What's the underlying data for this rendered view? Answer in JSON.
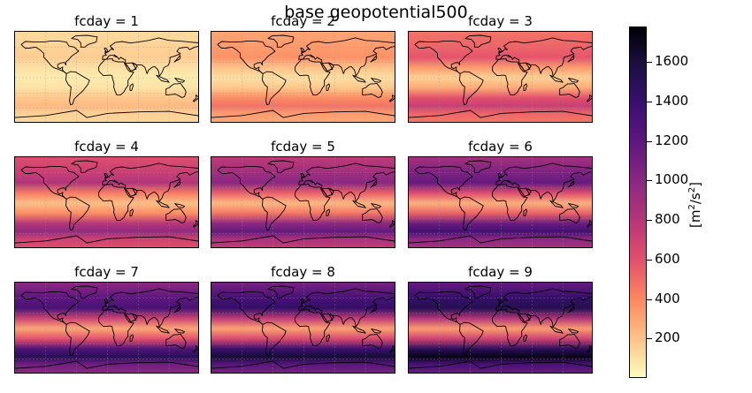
{
  "chart_data": {
    "type": "heatmap",
    "title": "base geopotential500",
    "facet_variable": "fcday",
    "panels": [
      {
        "title": "fcday = 1",
        "fcday": 1,
        "lat_band_values": [
          {
            "lat": 90,
            "value": 120
          },
          {
            "lat": 60,
            "value": 140
          },
          {
            "lat": 40,
            "value": 160
          },
          {
            "lat": 20,
            "value": 100
          },
          {
            "lat": 0,
            "value": 60
          },
          {
            "lat": -20,
            "value": 90
          },
          {
            "lat": -40,
            "value": 180
          },
          {
            "lat": -55,
            "value": 230
          },
          {
            "lat": -70,
            "value": 150
          },
          {
            "lat": -90,
            "value": 120
          }
        ]
      },
      {
        "title": "fcday = 2",
        "fcday": 2,
        "lat_band_values": [
          {
            "lat": 90,
            "value": 300
          },
          {
            "lat": 60,
            "value": 330
          },
          {
            "lat": 40,
            "value": 360
          },
          {
            "lat": 20,
            "value": 200
          },
          {
            "lat": 0,
            "value": 100
          },
          {
            "lat": -20,
            "value": 180
          },
          {
            "lat": -40,
            "value": 380
          },
          {
            "lat": -55,
            "value": 470
          },
          {
            "lat": -70,
            "value": 330
          },
          {
            "lat": -90,
            "value": 280
          }
        ]
      },
      {
        "title": "fcday = 3",
        "fcday": 3,
        "lat_band_values": [
          {
            "lat": 90,
            "value": 470
          },
          {
            "lat": 60,
            "value": 520
          },
          {
            "lat": 40,
            "value": 580
          },
          {
            "lat": 20,
            "value": 330
          },
          {
            "lat": 0,
            "value": 150
          },
          {
            "lat": -20,
            "value": 280
          },
          {
            "lat": -40,
            "value": 600
          },
          {
            "lat": -55,
            "value": 720
          },
          {
            "lat": -70,
            "value": 520
          },
          {
            "lat": -90,
            "value": 440
          }
        ]
      },
      {
        "title": "fcday = 4",
        "fcday": 4,
        "lat_band_values": [
          {
            "lat": 90,
            "value": 620
          },
          {
            "lat": 60,
            "value": 720
          },
          {
            "lat": 40,
            "value": 820
          },
          {
            "lat": 20,
            "value": 440
          },
          {
            "lat": 0,
            "value": 200
          },
          {
            "lat": -20,
            "value": 380
          },
          {
            "lat": -40,
            "value": 800
          },
          {
            "lat": -55,
            "value": 960
          },
          {
            "lat": -70,
            "value": 700
          },
          {
            "lat": -90,
            "value": 600
          }
        ]
      },
      {
        "title": "fcday = 5",
        "fcday": 5,
        "lat_band_values": [
          {
            "lat": 90,
            "value": 760
          },
          {
            "lat": 60,
            "value": 900
          },
          {
            "lat": 40,
            "value": 1000
          },
          {
            "lat": 20,
            "value": 540
          },
          {
            "lat": 0,
            "value": 230
          },
          {
            "lat": -20,
            "value": 460
          },
          {
            "lat": -40,
            "value": 990
          },
          {
            "lat": -55,
            "value": 1160
          },
          {
            "lat": -70,
            "value": 860
          },
          {
            "lat": -90,
            "value": 730
          }
        ]
      },
      {
        "title": "fcday = 6",
        "fcday": 6,
        "lat_band_values": [
          {
            "lat": 90,
            "value": 880
          },
          {
            "lat": 60,
            "value": 1060
          },
          {
            "lat": 40,
            "value": 1160
          },
          {
            "lat": 20,
            "value": 620
          },
          {
            "lat": 0,
            "value": 260
          },
          {
            "lat": -20,
            "value": 530
          },
          {
            "lat": -40,
            "value": 1140
          },
          {
            "lat": -55,
            "value": 1340
          },
          {
            "lat": -70,
            "value": 1000
          },
          {
            "lat": -90,
            "value": 850
          }
        ]
      },
      {
        "title": "fcday = 7",
        "fcday": 7,
        "lat_band_values": [
          {
            "lat": 90,
            "value": 990
          },
          {
            "lat": 60,
            "value": 1200
          },
          {
            "lat": 40,
            "value": 1300
          },
          {
            "lat": 20,
            "value": 700
          },
          {
            "lat": 0,
            "value": 290
          },
          {
            "lat": -20,
            "value": 590
          },
          {
            "lat": -40,
            "value": 1280
          },
          {
            "lat": -55,
            "value": 1490
          },
          {
            "lat": -70,
            "value": 1120
          },
          {
            "lat": -90,
            "value": 960
          }
        ]
      },
      {
        "title": "fcday = 8",
        "fcday": 8,
        "lat_band_values": [
          {
            "lat": 90,
            "value": 1080
          },
          {
            "lat": 60,
            "value": 1320
          },
          {
            "lat": 40,
            "value": 1420
          },
          {
            "lat": 20,
            "value": 760
          },
          {
            "lat": 0,
            "value": 310
          },
          {
            "lat": -20,
            "value": 640
          },
          {
            "lat": -40,
            "value": 1390
          },
          {
            "lat": -55,
            "value": 1620
          },
          {
            "lat": -70,
            "value": 1230
          },
          {
            "lat": -90,
            "value": 1050
          }
        ]
      },
      {
        "title": "fcday = 9",
        "fcday": 9,
        "lat_band_values": [
          {
            "lat": 90,
            "value": 1160
          },
          {
            "lat": 60,
            "value": 1420
          },
          {
            "lat": 40,
            "value": 1520
          },
          {
            "lat": 20,
            "value": 820
          },
          {
            "lat": 0,
            "value": 330
          },
          {
            "lat": -20,
            "value": 690
          },
          {
            "lat": -40,
            "value": 1480
          },
          {
            "lat": -55,
            "value": 1720
          },
          {
            "lat": -70,
            "value": 1320
          },
          {
            "lat": -90,
            "value": 1130
          }
        ]
      }
    ],
    "colorbar": {
      "label": "[m²/s²]",
      "label_base": "[m",
      "label_sup1": "2",
      "label_mid": "/s",
      "label_sup2": "2",
      "label_end": "]",
      "range": [
        0,
        1780
      ],
      "ticks": [
        200,
        400,
        600,
        800,
        1000,
        1200,
        1400,
        1600
      ],
      "colormap": "magma_r",
      "colormap_stops": [
        "#fcfdbf",
        "#fec287",
        "#fb8861",
        "#e3506d",
        "#b73779",
        "#8c2981",
        "#5f187f",
        "#3b0f70",
        "#1c1044",
        "#000004"
      ]
    },
    "colors": {
      "coastline": "#000000",
      "gridline": "#9a9a9a"
    }
  }
}
